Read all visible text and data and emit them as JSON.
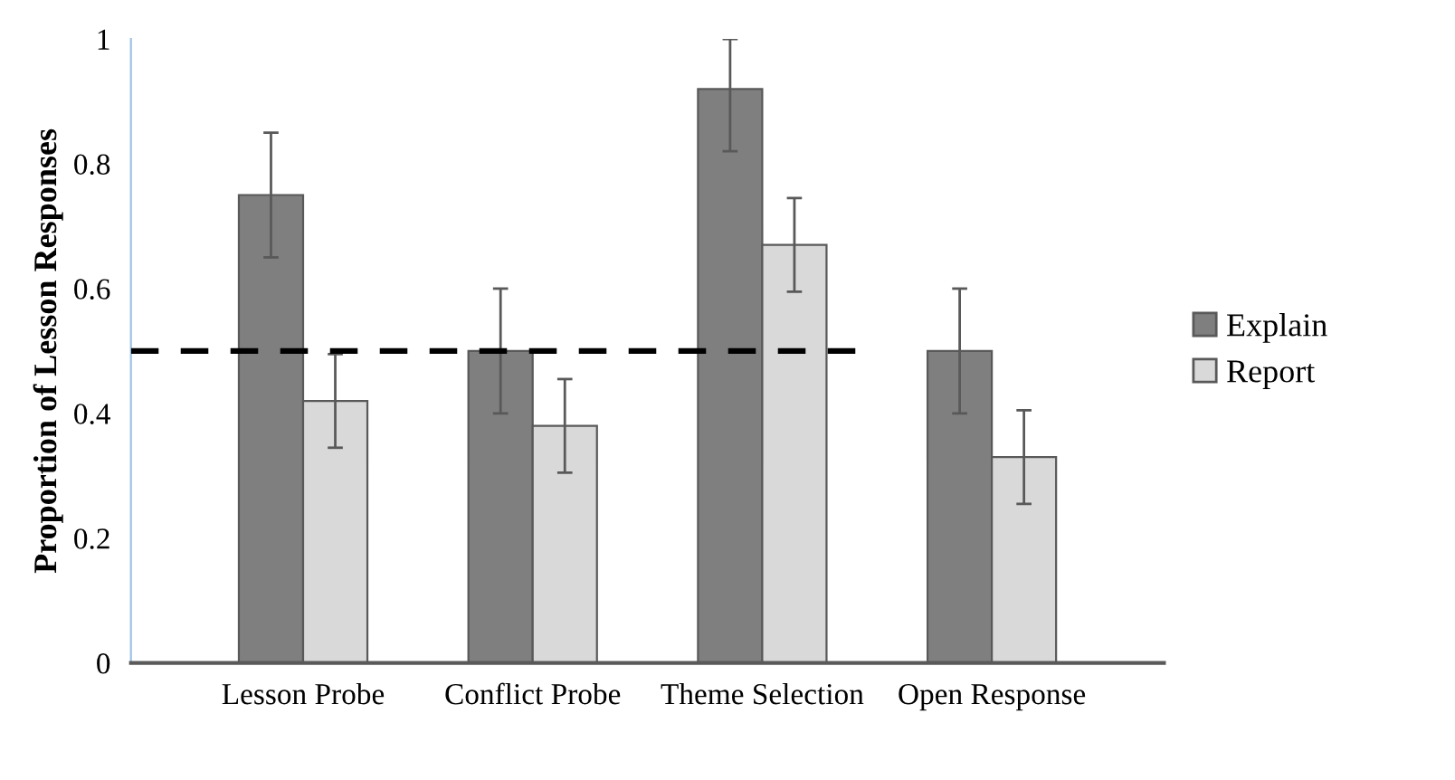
{
  "chart_data": {
    "type": "bar",
    "ylabel": "Proportion of Lesson Responses",
    "categories": [
      "Lesson Probe",
      "Conflict Probe",
      "Theme Selection",
      "Open Response"
    ],
    "series": [
      {
        "name": "Explain",
        "color": "#7f7f7f",
        "values": [
          0.75,
          0.5,
          0.92,
          0.5
        ],
        "errors": [
          0.1,
          0.1,
          [
            0.82,
            1.0
          ],
          0.1
        ]
      },
      {
        "name": "Report",
        "color": "#d9d9d9",
        "values": [
          0.42,
          0.38,
          0.67,
          0.33
        ],
        "errors": [
          0.075,
          0.075,
          0.075,
          0.075
        ]
      }
    ],
    "ylim": [
      0,
      1
    ],
    "yticks": [
      0,
      0.2,
      0.4,
      0.6,
      0.8,
      1
    ],
    "ref_lines": [
      {
        "axis": "y",
        "value": 0.5,
        "color": "#000000",
        "line_style": "dashed"
      }
    ],
    "grid": false,
    "legend": "right"
  }
}
